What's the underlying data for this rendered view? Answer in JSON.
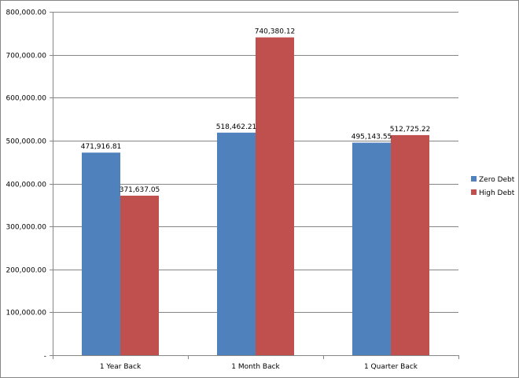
{
  "chart_data": {
    "type": "bar",
    "categories": [
      "1 Year Back",
      "1 Month Back",
      "1 Quarter Back"
    ],
    "series": [
      {
        "name": "Zero Debt",
        "color": "#4F81BD",
        "values": [
          471916.81,
          518462.21,
          495143.55
        ],
        "labels": [
          "471,916.81",
          "518,462.21",
          "495,143.55"
        ]
      },
      {
        "name": "High Debt",
        "color": "#C0504D",
        "values": [
          371637.05,
          740380.12,
          512725.22
        ],
        "labels": [
          "371,637.05",
          "740,380.12",
          "512,725.22"
        ]
      }
    ],
    "ylim": [
      0,
      800000
    ],
    "yticks": [
      0,
      100000,
      200000,
      300000,
      400000,
      500000,
      600000,
      700000,
      800000
    ],
    "ytick_labels": [
      "-",
      "100,000.00",
      "200,000.00",
      "300,000.00",
      "400,000.00",
      "500,000.00",
      "600,000.00",
      "700,000.00",
      "800,000.00"
    ],
    "grid": true,
    "legend_position": "right",
    "title": "",
    "xlabel": "",
    "ylabel": ""
  }
}
